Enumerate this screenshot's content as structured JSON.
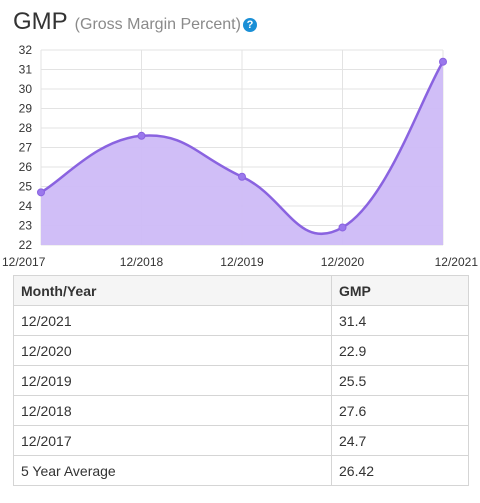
{
  "title": {
    "main": "GMP",
    "sub": "(Gross Margin Percent)",
    "help": "?"
  },
  "colors": {
    "line": "#8a63e0",
    "fill": "#cdbbf7",
    "grid": "#e3e3e3",
    "point": "#9a78ec"
  },
  "chart_data": {
    "type": "area",
    "categories": [
      "12/2017",
      "12/2018",
      "12/2019",
      "12/2020",
      "12/2021"
    ],
    "values": [
      24.7,
      27.6,
      25.5,
      22.9,
      31.4
    ],
    "ylim": [
      22,
      32
    ],
    "yticks": [
      "22",
      "23",
      "24",
      "25",
      "26",
      "27",
      "28",
      "29",
      "30",
      "31",
      "32"
    ],
    "grid": true,
    "title": "",
    "xlabel": "",
    "ylabel": ""
  },
  "table": {
    "headers": [
      "Month/Year",
      "GMP"
    ],
    "rows": [
      [
        "12/2021",
        "31.4"
      ],
      [
        "12/2020",
        "22.9"
      ],
      [
        "12/2019",
        "25.5"
      ],
      [
        "12/2018",
        "27.6"
      ],
      [
        "12/2017",
        "24.7"
      ],
      [
        "5 Year Average",
        "26.42"
      ]
    ]
  }
}
